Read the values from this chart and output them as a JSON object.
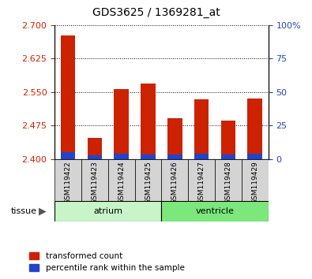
{
  "title": "GDS3625 / 1369281_at",
  "samples": [
    "GSM119422",
    "GSM119423",
    "GSM119424",
    "GSM119425",
    "GSM119426",
    "GSM119427",
    "GSM119428",
    "GSM119429"
  ],
  "transformed_count": [
    2.676,
    2.448,
    2.556,
    2.569,
    2.492,
    2.534,
    2.487,
    2.535
  ],
  "percentile_rank": [
    5.0,
    3.0,
    4.0,
    3.5,
    3.5,
    4.0,
    3.5,
    4.0
  ],
  "ylim_left": [
    2.4,
    2.7
  ],
  "ylim_right": [
    0,
    100
  ],
  "yticks_left": [
    2.4,
    2.475,
    2.55,
    2.625,
    2.7
  ],
  "yticks_right": [
    0,
    25,
    50,
    75,
    100
  ],
  "groups": [
    {
      "label": "atrium",
      "start": 0,
      "end": 3,
      "color": "#c8f5c8"
    },
    {
      "label": "ventricle",
      "start": 4,
      "end": 7,
      "color": "#7ce87c"
    }
  ],
  "bar_color_red": "#cc2200",
  "bar_color_blue": "#2244cc",
  "bar_width": 0.55,
  "left_tick_color": "#cc2200",
  "right_tick_color": "#2244bb",
  "bg_gray": "#d4d4d4"
}
